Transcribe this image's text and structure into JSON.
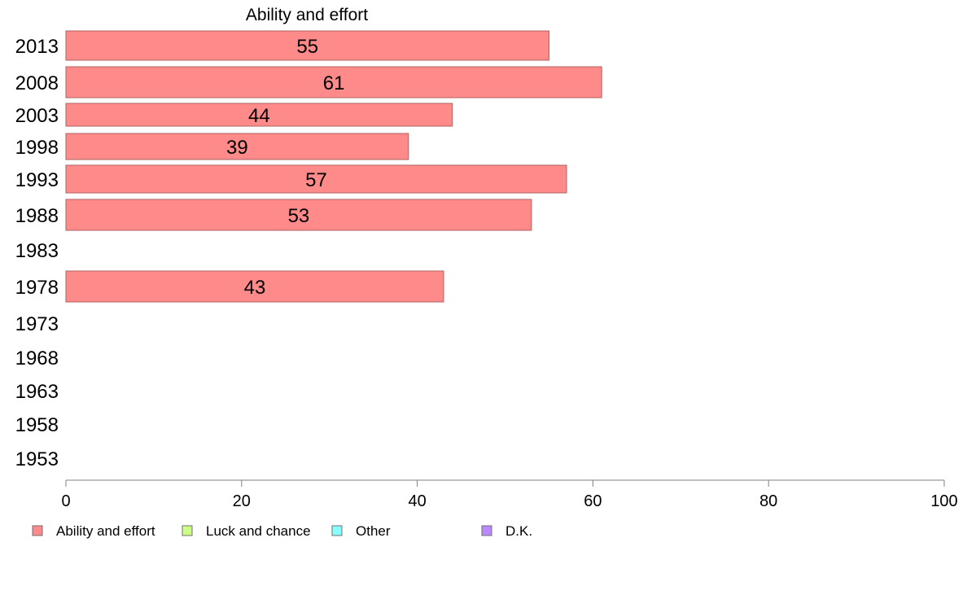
{
  "chart_data": {
    "type": "bar",
    "orientation": "horizontal",
    "title": "Ability and effort",
    "xlabel": "",
    "ylabel": "",
    "xlim": [
      0,
      100
    ],
    "x_ticks": [
      0,
      20,
      40,
      60,
      80,
      100
    ],
    "categories": [
      "2013",
      "2008",
      "2003",
      "1998",
      "1993",
      "1988",
      "1983",
      "1978",
      "1973",
      "1968",
      "1963",
      "1958",
      "1953"
    ],
    "series": [
      {
        "name": "Ability and effort",
        "color": "#ff8a8a",
        "values": [
          55,
          61,
          44,
          39,
          57,
          53,
          null,
          43,
          null,
          null,
          null,
          null,
          null
        ]
      }
    ],
    "legend": {
      "placement": "bottom-left",
      "entries": [
        {
          "label": "Ability and effort",
          "color": "#ff8a8a"
        },
        {
          "label": "Luck and chance",
          "color": "#ccff88"
        },
        {
          "label": "Other",
          "color": "#88ffff"
        },
        {
          "label": "D.K.",
          "color": "#bb88ff"
        }
      ]
    },
    "grid": false
  }
}
